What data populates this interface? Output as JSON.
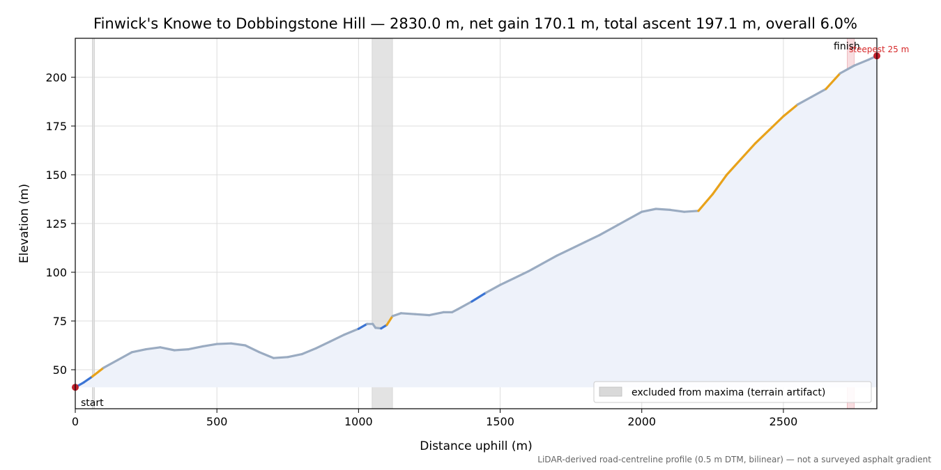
{
  "chart_data": {
    "type": "line",
    "title": "Finwick's Knowe to Dobbingstone Hill — 2830.0 m, net gain 170.1 m, total ascent 197.1 m, overall 6.0%",
    "xlabel": "Distance uphill (m)",
    "ylabel": "Elevation (m)",
    "xlim": [
      0,
      2830
    ],
    "ylim": [
      30,
      220
    ],
    "grid": true,
    "x_ticks": [
      0,
      500,
      1000,
      1500,
      2000,
      2500
    ],
    "y_ticks": [
      50,
      75,
      100,
      125,
      150,
      175,
      200
    ],
    "fill_baseline": 41,
    "series": [
      {
        "x": [
          0,
          30,
          60,
          100,
          150,
          200,
          250,
          300,
          350,
          400,
          450,
          500,
          550,
          600,
          650,
          700,
          750,
          800,
          850,
          900,
          950,
          1000,
          1030,
          1050,
          1060,
          1080,
          1100,
          1120,
          1150,
          1200,
          1250,
          1300,
          1330,
          1350,
          1400,
          1450,
          1500,
          1550,
          1600,
          1650,
          1700,
          1750,
          1800,
          1850,
          1900,
          1950,
          2000,
          2050,
          2100,
          2150,
          2200,
          2250,
          2300,
          2350,
          2400,
          2450,
          2500,
          2550,
          2600,
          2650,
          2700,
          2750,
          2800,
          2830
        ],
        "y": [
          41,
          43.5,
          46.5,
          51,
          55,
          59,
          60.5,
          61.5,
          60,
          60.5,
          62,
          63.2,
          63.5,
          62.5,
          59,
          56,
          56.5,
          58,
          61,
          64.5,
          68,
          71,
          73.5,
          73.5,
          71.5,
          71.2,
          73,
          77.5,
          79,
          78.5,
          78,
          79.5,
          79.5,
          81,
          85,
          89.5,
          93.5,
          97,
          100.5,
          104.5,
          108.5,
          112,
          115.5,
          119,
          123,
          127,
          131,
          132.5,
          132,
          131,
          131.5,
          140,
          150,
          158,
          166,
          173,
          180,
          186,
          190,
          194,
          202,
          206,
          209,
          211
        ]
      }
    ],
    "excluded_spans": [
      [
        60,
        68
      ],
      [
        1048,
        1120
      ]
    ],
    "steepest_span": [
      2725,
      2750
    ],
    "annotations": {
      "start": "start",
      "finish": "finish",
      "steepest": "steepest 25 m"
    },
    "legend": {
      "label": "excluded from maxima (terrain artifact)",
      "placement": "lower-right"
    },
    "footnote": "LiDAR-derived road-centreline profile (0.5 m DTM, bilinear) — not a surveyed asphalt gradient",
    "colors": {
      "line": "#9aabc1",
      "line_steep": "#3b74d4",
      "line_steepest": "#e8a21a",
      "fill": "#eef2fa",
      "excluded": "#d9d9d9",
      "steepest_band": "#f4c7cc",
      "endpoint": "#c0202c",
      "annotation_red": "#d62728"
    }
  }
}
